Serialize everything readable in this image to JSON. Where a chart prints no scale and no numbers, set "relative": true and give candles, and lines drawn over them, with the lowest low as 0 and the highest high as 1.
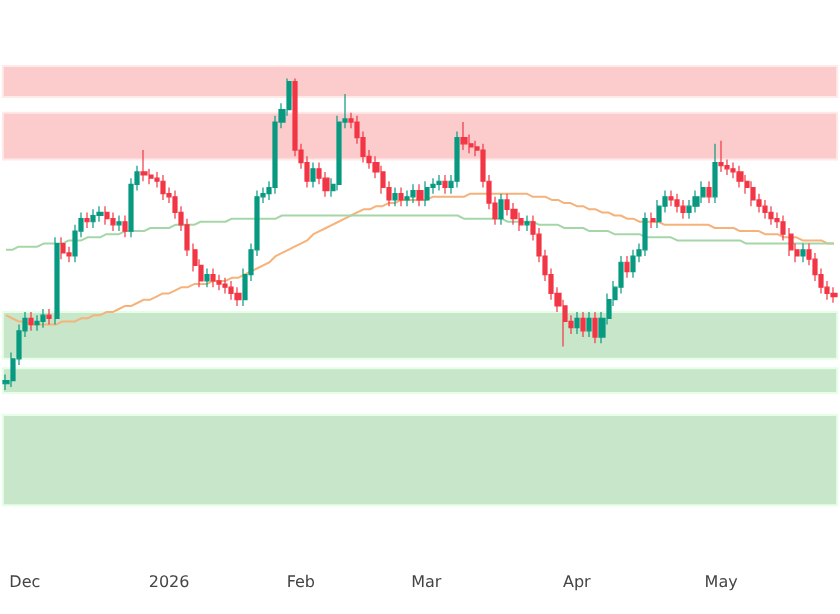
{
  "chart_data": {
    "type": "candlestick",
    "relative": true,
    "marker": "none",
    "grid": false,
    "categories": [
      null,
      null,
      null,
      "Dec",
      null,
      null,
      null,
      null,
      null,
      null,
      null,
      null,
      null,
      null,
      null,
      null,
      null,
      null,
      null,
      null,
      null,
      null,
      null,
      null,
      null,
      null,
      "2026",
      null,
      null,
      null,
      null,
      null,
      null,
      null,
      null,
      null,
      null,
      null,
      null,
      null,
      null,
      null,
      null,
      null,
      null,
      null,
      null,
      "Feb",
      null,
      null,
      null,
      null,
      null,
      null,
      null,
      null,
      null,
      null,
      null,
      null,
      null,
      null,
      null,
      null,
      null,
      null,
      null,
      "Mar",
      null,
      null,
      null,
      null,
      null,
      null,
      null,
      null,
      null,
      null,
      null,
      null,
      null,
      null,
      null,
      null,
      null,
      null,
      null,
      null,
      null,
      null,
      null,
      "Apr",
      null,
      null,
      null,
      null,
      null,
      null,
      null,
      null,
      null,
      null,
      null,
      null,
      null,
      null,
      null,
      null,
      null,
      null,
      null,
      null,
      null,
      null,
      "May",
      null,
      null,
      null,
      null,
      null,
      null,
      null,
      null,
      null,
      null,
      null,
      null,
      null,
      null,
      null,
      null,
      null,
      null
    ],
    "series": [
      {
        "colors": [
          "#089981",
          "#089981",
          "#089981",
          "#089981",
          "#f23645",
          "#089981",
          "#089981",
          "#f23645",
          "#089981",
          "#f23645",
          "#f23645",
          "#089981",
          "#089981",
          "#f23645",
          "#089981",
          "#089981",
          "#f23645",
          "#f23645",
          "#089981",
          "#f23645",
          "#089981",
          "#089981",
          "#f23645",
          "#f23645",
          "#f23645",
          "#f23645",
          "#f23645",
          "#f23645",
          "#f23645",
          "#f23645",
          "#f23645",
          "#f23645",
          "#089981",
          "#f23645",
          "#f23645",
          "#f23645",
          "#f23645",
          "#f23645",
          "#089981",
          "#089981",
          "#089981",
          "#089981",
          "#089981",
          "#089981",
          "#089981",
          "#089981",
          "#f23645",
          "#f23645",
          "#f23645",
          "#089981",
          "#f23645",
          "#f23645",
          "#089981",
          "#089981",
          "#089981",
          "#f23645",
          "#f23645",
          "#f23645",
          "#f23645",
          "#f23645",
          "#f23645",
          "#f23645",
          "#089981",
          "#f23645",
          "#089981",
          "#089981",
          "#f23645",
          "#089981",
          "#089981",
          "#089981",
          "#f23645",
          "#089981",
          "#089981",
          "#f23645",
          "#f23645",
          "#f23645",
          "#f23645",
          "#f23645",
          "#f23645",
          "#089981",
          "#f23645",
          "#f23645",
          "#f23645",
          "#089981",
          "#f23645",
          "#f23645",
          "#f23645",
          "#f23645",
          "#f23645",
          "#f23645",
          "#f23645",
          "#089981",
          "#f23645",
          "#089981",
          "#f23645",
          "#089981",
          "#089981",
          "#089981",
          "#089981",
          "#f23645",
          "#089981",
          "#089981",
          "#089981",
          "#f23645",
          "#089981",
          "#089981",
          "#f23645",
          "#f23645",
          "#f23645",
          "#089981",
          "#089981",
          "#089981",
          "#f23645",
          "#089981",
          "#f23645",
          "#f23645",
          "#f23645",
          "#f23645",
          "#f23645",
          "#f23645",
          "#f23645",
          "#f23645",
          "#f23645",
          "#f23645",
          "#f23645",
          "#f23645",
          "#f23645",
          "#089981",
          "#f23645",
          "#f23645",
          "#f23645",
          "#f23645",
          "#f23645"
        ],
        "ohlc": [
          [
            0.02,
            0.05,
            0,
            0.03
          ],
          [
            0.03,
            0.12,
            0.01,
            0.1
          ],
          [
            0.1,
            0.21,
            0.08,
            0.19
          ],
          [
            0.19,
            0.25,
            0.17,
            0.23
          ],
          [
            0.23,
            0.25,
            0.19,
            0.21
          ],
          [
            0.21,
            0.24,
            0.19,
            0.22
          ],
          [
            0.22,
            0.26,
            0.2,
            0.24
          ],
          [
            0.24,
            0.26,
            0.21,
            0.23
          ],
          [
            0.23,
            0.49,
            0.21,
            0.47
          ],
          [
            0.47,
            0.49,
            0.42,
            0.44
          ],
          [
            0.44,
            0.46,
            0.41,
            0.43
          ],
          [
            0.43,
            0.53,
            0.41,
            0.51
          ],
          [
            0.51,
            0.57,
            0.49,
            0.55
          ],
          [
            0.55,
            0.57,
            0.52,
            0.54
          ],
          [
            0.54,
            0.58,
            0.52,
            0.56
          ],
          [
            0.56,
            0.59,
            0.54,
            0.57
          ],
          [
            0.57,
            0.59,
            0.53,
            0.55
          ],
          [
            0.55,
            0.57,
            0.51,
            0.53
          ],
          [
            0.53,
            0.56,
            0.51,
            0.54
          ],
          [
            0.54,
            0.56,
            0.49,
            0.51
          ],
          [
            0.51,
            0.68,
            0.49,
            0.66
          ],
          [
            0.66,
            0.72,
            0.64,
            0.7
          ],
          [
            0.7,
            0.77,
            0.67,
            0.69
          ],
          [
            0.69,
            0.71,
            0.66,
            0.68
          ],
          [
            0.68,
            0.7,
            0.65,
            0.67
          ],
          [
            0.67,
            0.69,
            0.61,
            0.63
          ],
          [
            0.63,
            0.65,
            0.6,
            0.62
          ],
          [
            0.62,
            0.64,
            0.55,
            0.57
          ],
          [
            0.57,
            0.59,
            0.51,
            0.53
          ],
          [
            0.53,
            0.55,
            0.43,
            0.45
          ],
          [
            0.45,
            0.47,
            0.38,
            0.4
          ],
          [
            0.4,
            0.42,
            0.33,
            0.35
          ],
          [
            0.35,
            0.39,
            0.33,
            0.37
          ],
          [
            0.37,
            0.39,
            0.33,
            0.35
          ],
          [
            0.35,
            0.37,
            0.32,
            0.34
          ],
          [
            0.34,
            0.36,
            0.31,
            0.33
          ],
          [
            0.33,
            0.35,
            0.29,
            0.31
          ],
          [
            0.31,
            0.33,
            0.27,
            0.29
          ],
          [
            0.29,
            0.39,
            0.27,
            0.37
          ],
          [
            0.37,
            0.47,
            0.35,
            0.45
          ],
          [
            0.45,
            0.64,
            0.43,
            0.62
          ],
          [
            0.62,
            0.65,
            0.6,
            0.63
          ],
          [
            0.63,
            0.67,
            0.61,
            0.65
          ],
          [
            0.65,
            0.88,
            0.63,
            0.86
          ],
          [
            0.86,
            0.92,
            0.84,
            0.9
          ],
          [
            0.9,
            1.0,
            0.88,
            0.99
          ],
          [
            0.99,
            1.0,
            0.75,
            0.77
          ],
          [
            0.77,
            0.79,
            0.71,
            0.73
          ],
          [
            0.73,
            0.75,
            0.65,
            0.67
          ],
          [
            0.67,
            0.73,
            0.65,
            0.71
          ],
          [
            0.71,
            0.73,
            0.66,
            0.68
          ],
          [
            0.68,
            0.7,
            0.62,
            0.64
          ],
          [
            0.64,
            0.68,
            0.62,
            0.66
          ],
          [
            0.66,
            0.88,
            0.64,
            0.86
          ],
          [
            0.86,
            0.95,
            0.84,
            0.87
          ],
          [
            0.87,
            0.89,
            0.84,
            0.86
          ],
          [
            0.86,
            0.88,
            0.79,
            0.81
          ],
          [
            0.81,
            0.83,
            0.73,
            0.75
          ],
          [
            0.75,
            0.77,
            0.71,
            0.73
          ],
          [
            0.73,
            0.75,
            0.68,
            0.7
          ],
          [
            0.7,
            0.72,
            0.63,
            0.65
          ],
          [
            0.65,
            0.67,
            0.59,
            0.61
          ],
          [
            0.61,
            0.65,
            0.59,
            0.63
          ],
          [
            0.63,
            0.65,
            0.59,
            0.61
          ],
          [
            0.61,
            0.64,
            0.59,
            0.62
          ],
          [
            0.62,
            0.66,
            0.6,
            0.64
          ],
          [
            0.64,
            0.66,
            0.59,
            0.61
          ],
          [
            0.61,
            0.67,
            0.59,
            0.65
          ],
          [
            0.65,
            0.68,
            0.63,
            0.66
          ],
          [
            0.66,
            0.69,
            0.64,
            0.67
          ],
          [
            0.67,
            0.69,
            0.63,
            0.65
          ],
          [
            0.65,
            0.69,
            0.63,
            0.67
          ],
          [
            0.67,
            0.83,
            0.65,
            0.81
          ],
          [
            0.81,
            0.86,
            0.77,
            0.79
          ],
          [
            0.79,
            0.82,
            0.76,
            0.78
          ],
          [
            0.78,
            0.8,
            0.75,
            0.77
          ],
          [
            0.77,
            0.79,
            0.65,
            0.67
          ],
          [
            0.67,
            0.69,
            0.58,
            0.6
          ],
          [
            0.6,
            0.62,
            0.53,
            0.55
          ],
          [
            0.55,
            0.63,
            0.53,
            0.61
          ],
          [
            0.61,
            0.63,
            0.56,
            0.58
          ],
          [
            0.58,
            0.6,
            0.53,
            0.55
          ],
          [
            0.55,
            0.57,
            0.51,
            0.53
          ],
          [
            0.53,
            0.56,
            0.51,
            0.54
          ],
          [
            0.54,
            0.56,
            0.48,
            0.5
          ],
          [
            0.5,
            0.52,
            0.41,
            0.43
          ],
          [
            0.43,
            0.45,
            0.35,
            0.37
          ],
          [
            0.37,
            0.39,
            0.29,
            0.31
          ],
          [
            0.31,
            0.33,
            0.25,
            0.27
          ],
          [
            0.27,
            0.29,
            0.14,
            0.22
          ],
          [
            0.22,
            0.24,
            0.18,
            0.2
          ],
          [
            0.2,
            0.25,
            0.18,
            0.23
          ],
          [
            0.23,
            0.25,
            0.17,
            0.19
          ],
          [
            0.19,
            0.25,
            0.17,
            0.23
          ],
          [
            0.23,
            0.25,
            0.15,
            0.17
          ],
          [
            0.17,
            0.25,
            0.15,
            0.23
          ],
          [
            0.23,
            0.31,
            0.21,
            0.29
          ],
          [
            0.29,
            0.35,
            0.27,
            0.33
          ],
          [
            0.33,
            0.43,
            0.31,
            0.41
          ],
          [
            0.41,
            0.43,
            0.36,
            0.38
          ],
          [
            0.38,
            0.45,
            0.36,
            0.43
          ],
          [
            0.43,
            0.47,
            0.41,
            0.45
          ],
          [
            0.45,
            0.57,
            0.43,
            0.55
          ],
          [
            0.55,
            0.57,
            0.52,
            0.54
          ],
          [
            0.54,
            0.61,
            0.52,
            0.59
          ],
          [
            0.59,
            0.64,
            0.57,
            0.62
          ],
          [
            0.62,
            0.64,
            0.59,
            0.61
          ],
          [
            0.61,
            0.63,
            0.57,
            0.59
          ],
          [
            0.59,
            0.61,
            0.55,
            0.57
          ],
          [
            0.57,
            0.61,
            0.55,
            0.59
          ],
          [
            0.59,
            0.64,
            0.57,
            0.62
          ],
          [
            0.62,
            0.67,
            0.6,
            0.65
          ],
          [
            0.65,
            0.67,
            0.6,
            0.62
          ],
          [
            0.62,
            0.79,
            0.6,
            0.73
          ],
          [
            0.73,
            0.8,
            0.7,
            0.72
          ],
          [
            0.72,
            0.74,
            0.69,
            0.71
          ],
          [
            0.71,
            0.73,
            0.68,
            0.7
          ],
          [
            0.7,
            0.72,
            0.65,
            0.67
          ],
          [
            0.67,
            0.69,
            0.63,
            0.65
          ],
          [
            0.65,
            0.67,
            0.59,
            0.61
          ],
          [
            0.61,
            0.63,
            0.57,
            0.59
          ],
          [
            0.59,
            0.61,
            0.55,
            0.57
          ],
          [
            0.57,
            0.59,
            0.53,
            0.55
          ],
          [
            0.55,
            0.57,
            0.52,
            0.54
          ],
          [
            0.54,
            0.56,
            0.48,
            0.5
          ],
          [
            0.5,
            0.52,
            0.43,
            0.45
          ],
          [
            0.45,
            0.47,
            0.41,
            0.43
          ],
          [
            0.43,
            0.47,
            0.41,
            0.45
          ],
          [
            0.45,
            0.47,
            0.4,
            0.42
          ],
          [
            0.42,
            0.44,
            0.35,
            0.37
          ],
          [
            0.37,
            0.39,
            0.31,
            0.33
          ],
          [
            0.33,
            0.35,
            0.29,
            0.31
          ],
          [
            0.31,
            0.33,
            0.28,
            0.3
          ]
        ]
      },
      {
        "type": "line",
        "color": "#f5b27a",
        "values": [
          0.24,
          0.23,
          0.22,
          0.22,
          0.21,
          0.21,
          0.21,
          0.21,
          0.21,
          0.22,
          0.22,
          0.22,
          0.23,
          0.23,
          0.24,
          0.24,
          0.25,
          0.25,
          0.26,
          0.27,
          0.27,
          0.28,
          0.29,
          0.29,
          0.3,
          0.31,
          0.31,
          0.32,
          0.33,
          0.33,
          0.34,
          0.34,
          0.34,
          0.35,
          0.35,
          0.35,
          0.36,
          0.36,
          0.37,
          0.38,
          0.39,
          0.4,
          0.41,
          0.43,
          0.44,
          0.45,
          0.46,
          0.47,
          0.48,
          0.5,
          0.51,
          0.52,
          0.53,
          0.54,
          0.55,
          0.56,
          0.57,
          0.58,
          0.58,
          0.59,
          0.59,
          0.6,
          0.6,
          0.61,
          0.61,
          0.61,
          0.61,
          0.61,
          0.62,
          0.62,
          0.62,
          0.62,
          0.62,
          0.62,
          0.63,
          0.63,
          0.63,
          0.63,
          0.63,
          0.63,
          0.63,
          0.63,
          0.63,
          0.63,
          0.62,
          0.62,
          0.62,
          0.61,
          0.61,
          0.6,
          0.6,
          0.59,
          0.59,
          0.58,
          0.58,
          0.57,
          0.57,
          0.56,
          0.56,
          0.55,
          0.55,
          0.54,
          0.54,
          0.54,
          0.54,
          0.53,
          0.53,
          0.53,
          0.53,
          0.53,
          0.53,
          0.53,
          0.53,
          0.52,
          0.52,
          0.52,
          0.52,
          0.51,
          0.51,
          0.51,
          0.51,
          0.5,
          0.5,
          0.5,
          0.49,
          0.49,
          0.49,
          0.48,
          0.48,
          0.48,
          0.48,
          0.47,
          0.47
        ]
      },
      {
        "type": "line",
        "color": "#a5d6a7",
        "values": [
          0.45,
          0.45,
          0.46,
          0.46,
          0.46,
          0.46,
          0.47,
          0.47,
          0.47,
          0.47,
          0.48,
          0.48,
          0.48,
          0.49,
          0.49,
          0.49,
          0.5,
          0.5,
          0.5,
          0.51,
          0.51,
          0.51,
          0.51,
          0.52,
          0.52,
          0.52,
          0.52,
          0.53,
          0.53,
          0.53,
          0.53,
          0.54,
          0.54,
          0.54,
          0.54,
          0.54,
          0.55,
          0.55,
          0.55,
          0.55,
          0.55,
          0.55,
          0.55,
          0.55,
          0.56,
          0.56,
          0.56,
          0.56,
          0.56,
          0.56,
          0.56,
          0.56,
          0.56,
          0.56,
          0.56,
          0.56,
          0.56,
          0.56,
          0.56,
          0.56,
          0.56,
          0.56,
          0.56,
          0.56,
          0.56,
          0.56,
          0.56,
          0.56,
          0.56,
          0.56,
          0.56,
          0.56,
          0.56,
          0.55,
          0.55,
          0.55,
          0.55,
          0.55,
          0.55,
          0.55,
          0.54,
          0.54,
          0.54,
          0.54,
          0.54,
          0.53,
          0.53,
          0.53,
          0.53,
          0.52,
          0.52,
          0.52,
          0.52,
          0.51,
          0.51,
          0.51,
          0.51,
          0.5,
          0.5,
          0.5,
          0.5,
          0.5,
          0.49,
          0.49,
          0.49,
          0.49,
          0.49,
          0.48,
          0.48,
          0.48,
          0.48,
          0.48,
          0.48,
          0.48,
          0.48,
          0.48,
          0.48,
          0.48,
          0.47,
          0.47,
          0.47,
          0.47,
          0.47,
          0.47,
          0.47,
          0.47,
          0.47,
          0.47,
          0.47,
          0.47,
          0.47,
          0.47,
          0.47
        ]
      }
    ],
    "bands": [
      {
        "axis": "y",
        "from": 0.94,
        "to": 1.04,
        "color": "#fccbcb"
      },
      {
        "axis": "y",
        "from": 0.74,
        "to": 0.89,
        "color": "#fccbcb"
      },
      {
        "axis": "y",
        "from": 0.1,
        "to": 0.25,
        "color": "#c8e6c9"
      },
      {
        "axis": "y",
        "from": -0.01,
        "to": 0.07,
        "color": "#c8e6c9"
      },
      {
        "axis": "y",
        "from": -0.37,
        "to": -0.08,
        "color": "#c8e6c9"
      }
    ]
  }
}
